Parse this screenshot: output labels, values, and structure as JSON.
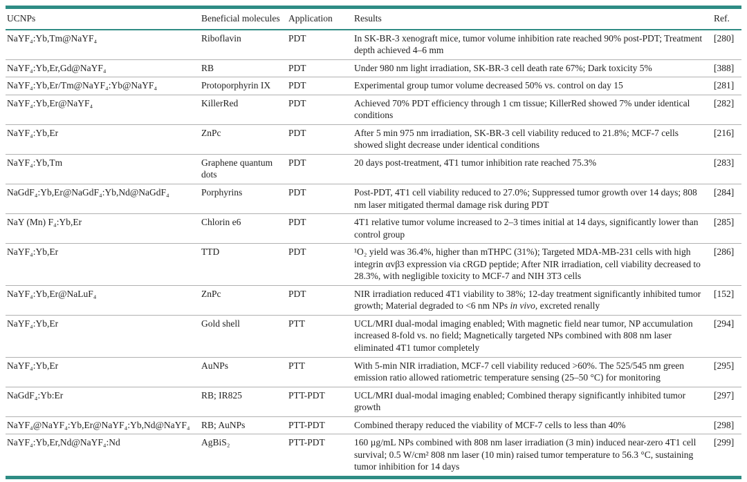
{
  "colors": {
    "accent_teal": "#2e8c84",
    "row_divider": "#b0b0b0",
    "text": "#212121",
    "background": "#ffffff"
  },
  "table": {
    "header": {
      "ucnp": "UCNPs",
      "molecules": "Beneficial molecules",
      "application": "Application",
      "results": "Results",
      "ref": "Ref."
    },
    "rows": [
      {
        "ucnp": "NaYF₄:Yb,Tm@NaYF₄",
        "molecules": "Riboflavin",
        "application": "PDT",
        "results": "In SK-BR-3 xenograft mice, tumor volume inhibition rate reached 90% post-PDT; Treatment depth achieved 4–6 mm",
        "ref": "[280]"
      },
      {
        "ucnp": "NaYF₄:Yb,Er,Gd@NaYF₄",
        "molecules": "RB",
        "application": "PDT",
        "results": "Under 980 nm light irradiation, SK-BR-3 cell death rate 67%; Dark toxicity 5%",
        "ref": "[388]"
      },
      {
        "ucnp": "NaYF₄:Yb,Er/Tm@NaYF₄:Yb@NaYF₄",
        "molecules": "Protoporphyrin IX",
        "application": "PDT",
        "results": "Experimental group tumor volume decreased 50% vs. control on day 15",
        "ref": "[281]"
      },
      {
        "ucnp": "NaYF₄:Yb,Er@NaYF₄",
        "molecules": "KillerRed",
        "application": "PDT",
        "results": "Achieved 70% PDT efficiency through 1 cm tissue; KillerRed showed 7% under identical conditions",
        "ref": "[282]"
      },
      {
        "ucnp": "NaYF₄:Yb,Er",
        "molecules": "ZnPc",
        "application": "PDT",
        "results": "After 5 min 975 nm irradiation, SK-BR-3 cell viability reduced to 21.8%; MCF-7 cells showed slight decrease under identical conditions",
        "ref": "[216]"
      },
      {
        "ucnp": "NaYF₄:Yb,Tm",
        "molecules": "Graphene quantum dots",
        "application": "PDT",
        "results": "20 days post-treatment, 4T1 tumor inhibition rate reached 75.3%",
        "ref": "[283]"
      },
      {
        "ucnp": "NaGdF₄:Yb,Er@NaGdF₄:Yb,Nd@NaGdF₄",
        "molecules": "Porphyrins",
        "application": "PDT",
        "results": "Post-PDT, 4T1 cell viability reduced to 27.0%; Suppressed tumor growth over 14 days; 808 nm laser mitigated thermal damage risk during PDT",
        "ref": "[284]"
      },
      {
        "ucnp": "NaY (Mn) F₄:Yb,Er",
        "molecules": "Chlorin e6",
        "application": "PDT",
        "results": "4T1 relative tumor volume increased to 2–3 times initial at 14 days, significantly lower than control group",
        "ref": "[285]"
      },
      {
        "ucnp": "NaYF₄:Yb,Er",
        "molecules": "TTD",
        "application": "PDT",
        "results": "¹O₂ yield was 36.4%, higher than mTHPC (31%); Targeted MDA-MB-231 cells with high integrin αvβ3 expression via cRGD peptide; After NIR irradiation, cell viability decreased to 28.3%, with negligible toxicity to MCF-7 and NIH 3T3 cells",
        "ref": "[286]"
      },
      {
        "ucnp": "NaYF₄:Yb,Er@NaLuF₄",
        "molecules": "ZnPc",
        "application": "PDT",
        "results_pre": "NIR irradiation reduced 4T1 viability to 38%; 12-day treatment significantly inhibited tumor growth; Material degraded to <6 nm NPs ",
        "results_italic": "in vivo",
        "results_post": ", excreted renally",
        "ref": "[152]"
      },
      {
        "ucnp": "NaYF₄:Yb,Er",
        "molecules": "Gold shell",
        "application": "PTT",
        "results": "UCL/MRI dual-modal imaging enabled; With magnetic field near tumor, NP accumulation increased 8-fold vs. no field; Magnetically targeted NPs combined with 808 nm laser eliminated 4T1 tumor completely",
        "ref": "[294]"
      },
      {
        "ucnp": "NaYF₄:Yb,Er",
        "molecules": "AuNPs",
        "application": "PTT",
        "results": "With 5-min NIR irradiation, MCF-7 cell viability reduced >60%. The 525/545 nm green emission ratio allowed ratiometric temperature sensing (25–50 °C) for monitoring",
        "ref": "[295]"
      },
      {
        "ucnp": "NaGdF₄:Yb:Er",
        "molecules": "RB; IR825",
        "application": "PTT-PDT",
        "results": "UCL/MRI dual-modal imaging enabled; Combined therapy significantly inhibited tumor growth",
        "ref": "[297]"
      },
      {
        "ucnp": "NaYF₄@NaYF₄:Yb,Er@NaYF₄:Yb,Nd@NaYF₄",
        "molecules": "RB; AuNPs",
        "application": "PTT-PDT",
        "results": "Combined therapy reduced the viability of MCF-7 cells to less than 40%",
        "ref": "[298]"
      },
      {
        "ucnp": "NaYF₄:Yb,Er,Nd@NaYF₄:Nd",
        "molecules": "AgBiS₂",
        "application": "PTT-PDT",
        "results": "160 µg/mL NPs combined with 808 nm laser irradiation (3 min) induced near-zero 4T1 cell survival; 0.5 W/cm² 808 nm laser (10 min) raised tumor temperature to 56.3 °C, sustaining tumor inhibition for 14 days",
        "ref": "[299]"
      }
    ]
  }
}
